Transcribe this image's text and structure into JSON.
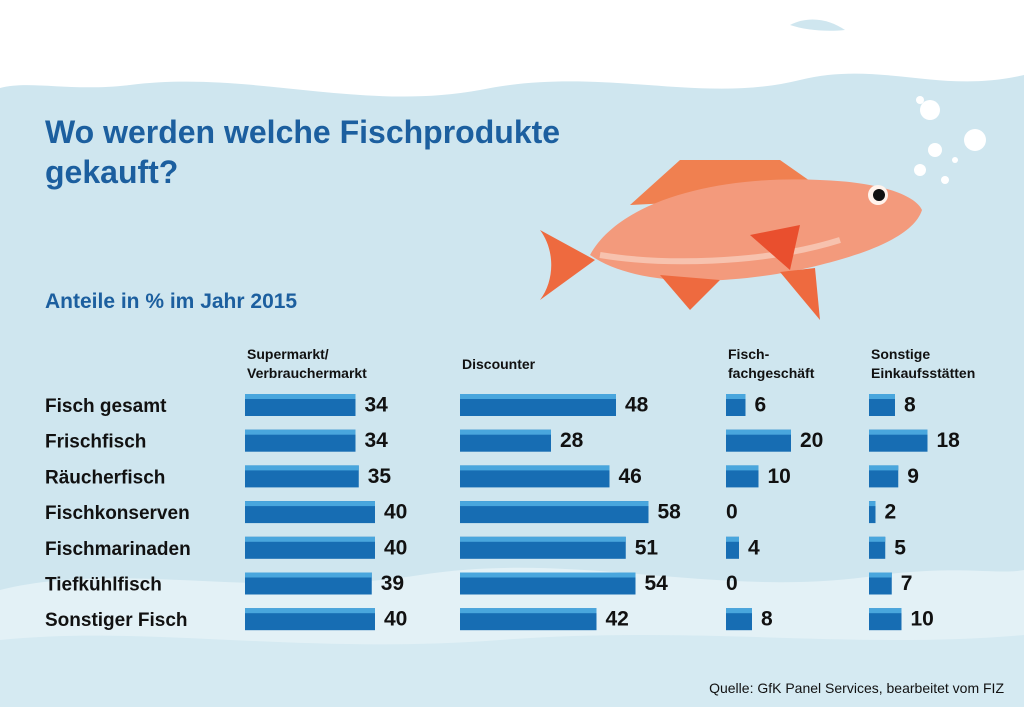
{
  "chart_data": {
    "type": "bar",
    "title": "Wo werden welche Fischprodukte\ngekauft?",
    "subtitle": "Anteile in % im Jahr 2015",
    "source": "Quelle: GfK Panel Services, bearbeitet vom FIZ",
    "categories": [
      "Fisch gesamt",
      "Frischfisch",
      "Räucherfisch",
      "Fischkonserven",
      "Fischmarinaden",
      "Tiefkühlfisch",
      "Sonstiger Fisch"
    ],
    "color": "#176db3",
    "series": [
      {
        "name": "Supermarkt/\nVerbrauchermarkt",
        "values": [
          34,
          34,
          35,
          40,
          40,
          39,
          40
        ]
      },
      {
        "name": "Discounter",
        "values": [
          48,
          28,
          46,
          58,
          51,
          54,
          42
        ]
      },
      {
        "name": "Fisch-\nfachgeschäft",
        "values": [
          6,
          20,
          10,
          0,
          4,
          0,
          8
        ]
      },
      {
        "name": "Sonstige\nEinkaufsstätten",
        "values": [
          8,
          18,
          9,
          2,
          5,
          7,
          10
        ]
      }
    ]
  }
}
